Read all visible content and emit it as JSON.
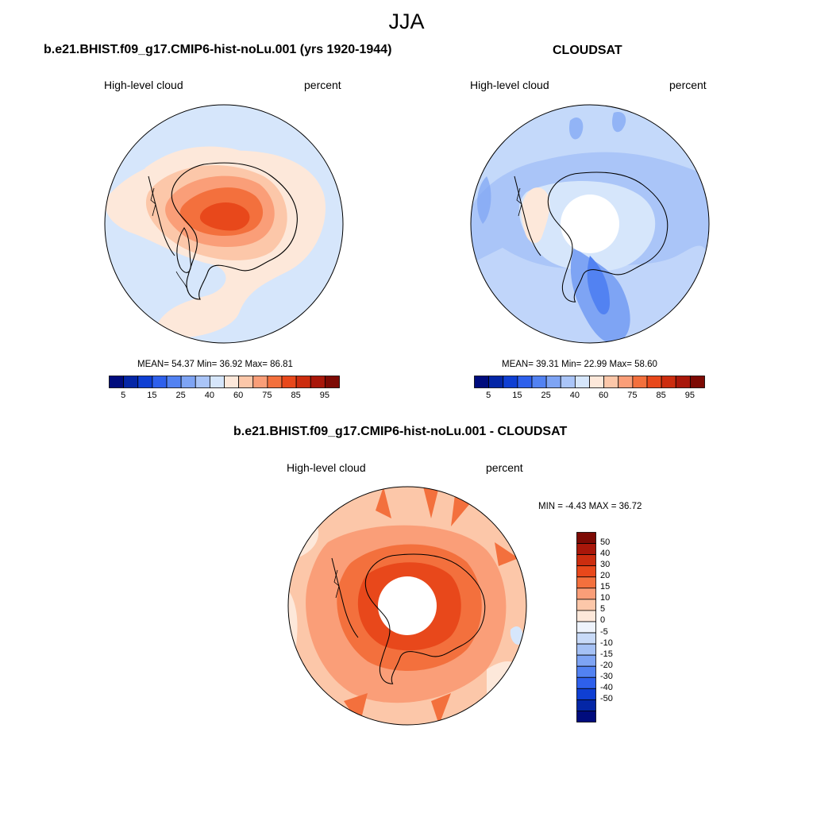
{
  "figure": {
    "title": "JJA"
  },
  "panels": [
    {
      "title": "b.e21.BHIST.f09_g17.CMIP6-hist-noLu.001 (yrs 1920-1944)",
      "left_label": "High-level cloud",
      "right_label": "percent",
      "stats": "MEAN=  54.37  Min=  36.92  Max=  86.81",
      "colorbar": {
        "colors": [
          "#000c7d",
          "#0426a6",
          "#0f3fd3",
          "#2e60ec",
          "#5282f2",
          "#7ea4f4",
          "#aac5f8",
          "#d6e6fb",
          "#fde8da",
          "#fcc7a9",
          "#fa9e78",
          "#f3703d",
          "#e8481b",
          "#cc2d0f",
          "#a9170a",
          "#7d0a04"
        ],
        "tick_labels": [
          "5",
          "15",
          "25",
          "40",
          "60",
          "75",
          "85",
          "95"
        ]
      }
    },
    {
      "title": "CLOUDSAT",
      "left_label": "High-level cloud",
      "right_label": "percent",
      "stats": "MEAN=  39.31  Min=  22.99  Max=  58.60",
      "colorbar": {
        "colors": [
          "#000c7d",
          "#0426a6",
          "#0f3fd3",
          "#2e60ec",
          "#5282f2",
          "#7ea4f4",
          "#aac5f8",
          "#d6e6fb",
          "#fde8da",
          "#fcc7a9",
          "#fa9e78",
          "#f3703d",
          "#e8481b",
          "#cc2d0f",
          "#a9170a",
          "#7d0a04"
        ],
        "tick_labels": [
          "5",
          "15",
          "25",
          "40",
          "60",
          "75",
          "85",
          "95"
        ]
      }
    },
    {
      "title": "b.e21.BHIST.f09_g17.CMIP6-hist-noLu.001 - CLOUDSAT",
      "left_label": "High-level cloud",
      "right_label": "percent",
      "stats": "MIN =  -4.43 MAX =  36.72",
      "colorbar": {
        "colors": [
          "#7d0a04",
          "#a9170a",
          "#cc2d0f",
          "#e8481b",
          "#f3703d",
          "#fa9e78",
          "#fcc7a9",
          "#fde8da",
          "#eef3fc",
          "#c8daf8",
          "#a5c1f5",
          "#7ea4f4",
          "#5282f2",
          "#2e60ec",
          "#0f3fd3",
          "#0426a6",
          "#000c7d"
        ],
        "tick_labels": [
          "50",
          "40",
          "30",
          "20",
          "15",
          "10",
          "5",
          "0",
          "-5",
          "-10",
          "-15",
          "-20",
          "-30",
          "-40",
          "-50"
        ]
      }
    }
  ]
}
